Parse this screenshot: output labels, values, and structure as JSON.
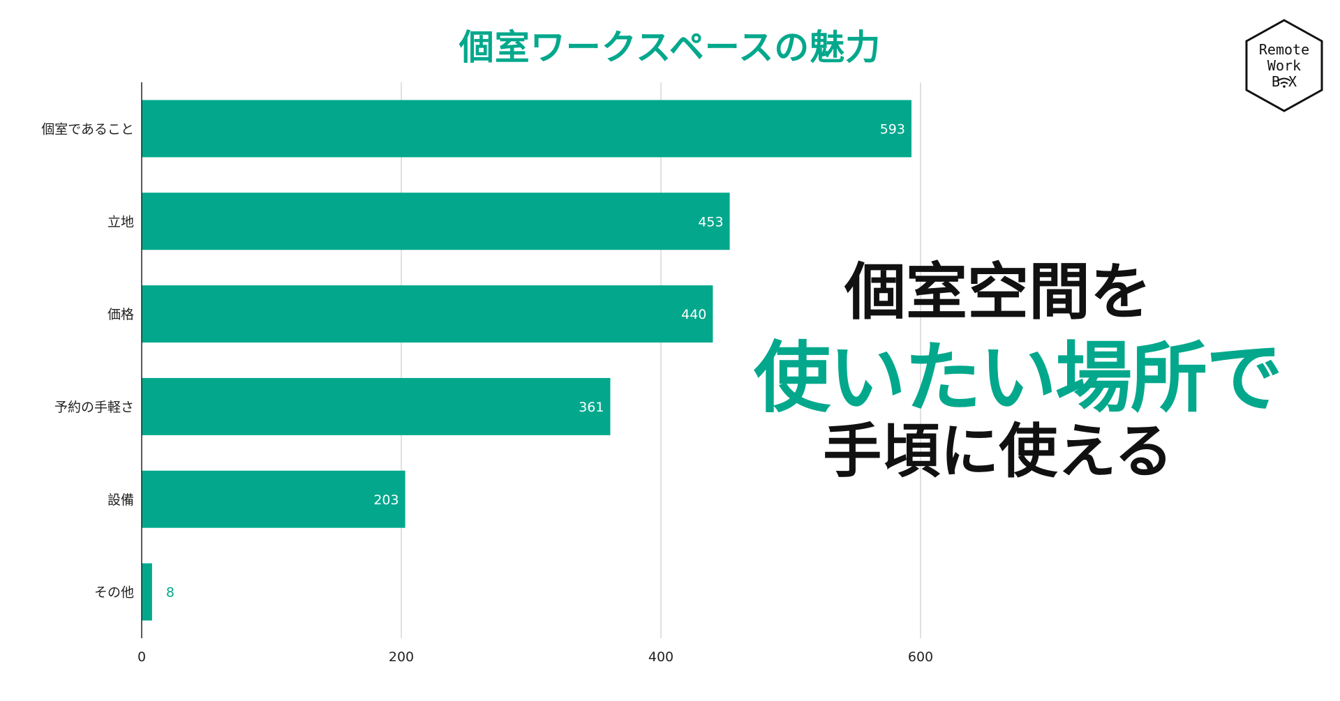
{
  "chart_data": {
    "type": "bar",
    "orientation": "horizontal",
    "title": "個室ワークスペースの魅力",
    "categories": [
      "個室であること",
      "立地",
      "価格",
      "予約の手軽さ",
      "設備",
      "その他"
    ],
    "values": [
      593,
      453,
      440,
      361,
      203,
      8
    ],
    "xlim": [
      0,
      600
    ],
    "xticks": [
      0,
      200,
      400,
      600
    ],
    "xlabel": "",
    "ylabel": "",
    "grid": true,
    "legend": "none",
    "bar_color": "#03A88C"
  },
  "headline": {
    "line1": "個室空間を",
    "line2": "使いたい場所で",
    "line3": "手頃に使える"
  },
  "logo": {
    "line1": "Remote",
    "line2": "Work",
    "line3": "B  X"
  },
  "colors": {
    "accent": "#03A88C",
    "text": "#111111",
    "grid": "#cccccc"
  }
}
